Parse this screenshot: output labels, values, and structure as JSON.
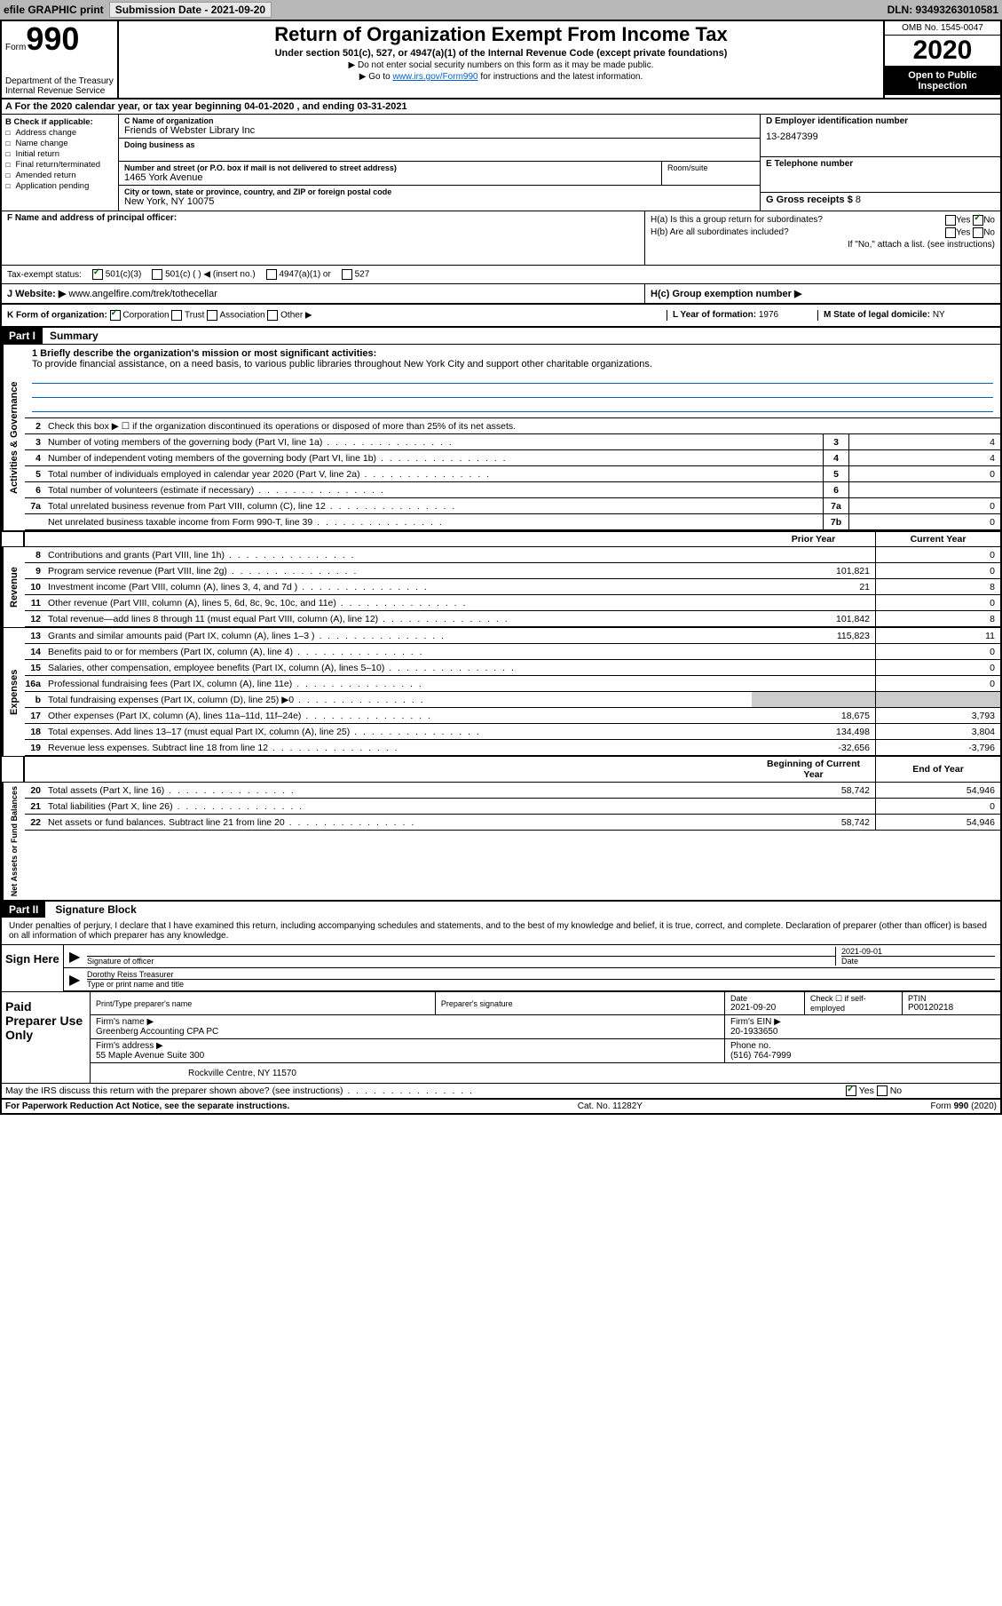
{
  "topbar": {
    "efile": "efile GRAPHIC print",
    "submission_label": "Submission Date - 2021-09-20",
    "dln": "DLN: 93493263010581"
  },
  "header": {
    "form_word": "Form",
    "form_num": "990",
    "dept": "Department of the Treasury\nInternal Revenue Service",
    "title": "Return of Organization Exempt From Income Tax",
    "subtitle": "Under section 501(c), 527, or 4947(a)(1) of the Internal Revenue Code (except private foundations)",
    "note1": "▶ Do not enter social security numbers on this form as it may be made public.",
    "note2_pre": "▶ Go to ",
    "note2_link": "www.irs.gov/Form990",
    "note2_post": " for instructions and the latest information.",
    "omb": "OMB No. 1545-0047",
    "year": "2020",
    "inspection": "Open to Public Inspection"
  },
  "row_a": "A For the 2020 calendar year, or tax year beginning 04-01-2020   , and ending 03-31-2021",
  "section_b": {
    "title": "B Check if applicable:",
    "items": [
      "Address change",
      "Name change",
      "Initial return",
      "Final return/terminated",
      "Amended return",
      "Application pending"
    ]
  },
  "section_c": {
    "name_label": "C Name of organization",
    "name": "Friends of Webster Library Inc",
    "dba_label": "Doing business as",
    "dba": "",
    "street_label": "Number and street (or P.O. box if mail is not delivered to street address)",
    "street": "1465 York Avenue",
    "room_label": "Room/suite",
    "city_label": "City or town, state or province, country, and ZIP or foreign postal code",
    "city": "New York, NY  10075"
  },
  "section_d": {
    "label": "D Employer identification number",
    "value": "13-2847399"
  },
  "section_e": {
    "label": "E Telephone number",
    "value": ""
  },
  "section_g": {
    "label": "G Gross receipts $",
    "value": "8"
  },
  "section_f": {
    "label": "F  Name and address of principal officer:",
    "value": ""
  },
  "section_h": {
    "ha": "H(a)  Is this a group return for subordinates?",
    "hb": "H(b)  Are all subordinates included?",
    "hb_note": "If \"No,\" attach a list. (see instructions)",
    "hc": "H(c)  Group exemption number ▶",
    "yes": "Yes",
    "no": "No"
  },
  "tax_status": {
    "label": "Tax-exempt status:",
    "opt1": "501(c)(3)",
    "opt2": "501(c) (   ) ◀ (insert no.)",
    "opt3": "4947(a)(1) or",
    "opt4": "527"
  },
  "section_j": {
    "label": "J   Website: ▶",
    "value": "www.angelfire.com/trek/tothecellar"
  },
  "section_k": {
    "label": "K Form of organization:",
    "corp": "Corporation",
    "trust": "Trust",
    "assoc": "Association",
    "other": "Other ▶"
  },
  "section_l": {
    "label": "L Year of formation:",
    "value": "1976"
  },
  "section_m": {
    "label": "M State of legal domicile:",
    "value": "NY"
  },
  "part1": {
    "badge": "Part I",
    "title": "Summary",
    "line1_label": "1  Briefly describe the organization's mission or most significant activities:",
    "mission": "To provide financial assistance, on a need basis, to various public libraries throughout New York City and support other charitable organizations.",
    "line2": "Check this box ▶ ☐  if the organization discontinued its operations or disposed of more than 25% of its net assets.",
    "rows_ag": [
      {
        "n": "3",
        "t": "Number of voting members of the governing body (Part VI, line 1a)",
        "box": "3",
        "v": "4"
      },
      {
        "n": "4",
        "t": "Number of independent voting members of the governing body (Part VI, line 1b)",
        "box": "4",
        "v": "4"
      },
      {
        "n": "5",
        "t": "Total number of individuals employed in calendar year 2020 (Part V, line 2a)",
        "box": "5",
        "v": "0"
      },
      {
        "n": "6",
        "t": "Total number of volunteers (estimate if necessary)",
        "box": "6",
        "v": ""
      },
      {
        "n": "7a",
        "t": "Total unrelated business revenue from Part VIII, column (C), line 12",
        "box": "7a",
        "v": "0"
      },
      {
        "n": "",
        "t": "Net unrelated business taxable income from Form 990-T, line 39",
        "box": "7b",
        "v": "0"
      }
    ],
    "col_prior": "Prior Year",
    "col_current": "Current Year",
    "col_begin": "Beginning of Current Year",
    "col_end": "End of Year",
    "side_ag": "Activities & Governance",
    "side_rev": "Revenue",
    "side_exp": "Expenses",
    "side_net": "Net Assets or Fund Balances",
    "rows_rev": [
      {
        "n": "8",
        "t": "Contributions and grants (Part VIII, line 1h)",
        "p": "",
        "c": "0"
      },
      {
        "n": "9",
        "t": "Program service revenue (Part VIII, line 2g)",
        "p": "101,821",
        "c": "0"
      },
      {
        "n": "10",
        "t": "Investment income (Part VIII, column (A), lines 3, 4, and 7d )",
        "p": "21",
        "c": "8"
      },
      {
        "n": "11",
        "t": "Other revenue (Part VIII, column (A), lines 5, 6d, 8c, 9c, 10c, and 11e)",
        "p": "",
        "c": "0"
      },
      {
        "n": "12",
        "t": "Total revenue—add lines 8 through 11 (must equal Part VIII, column (A), line 12)",
        "p": "101,842",
        "c": "8"
      }
    ],
    "rows_exp": [
      {
        "n": "13",
        "t": "Grants and similar amounts paid (Part IX, column (A), lines 1–3 )",
        "p": "115,823",
        "c": "11"
      },
      {
        "n": "14",
        "t": "Benefits paid to or for members (Part IX, column (A), line 4)",
        "p": "",
        "c": "0"
      },
      {
        "n": "15",
        "t": "Salaries, other compensation, employee benefits (Part IX, column (A), lines 5–10)",
        "p": "",
        "c": "0"
      },
      {
        "n": "16a",
        "t": "Professional fundraising fees (Part IX, column (A), line 11e)",
        "p": "",
        "c": "0"
      },
      {
        "n": "b",
        "t": "Total fundraising expenses (Part IX, column (D), line 25) ▶0",
        "p": "SHADE",
        "c": "SHADE"
      },
      {
        "n": "17",
        "t": "Other expenses (Part IX, column (A), lines 11a–11d, 11f–24e)",
        "p": "18,675",
        "c": "3,793"
      },
      {
        "n": "18",
        "t": "Total expenses. Add lines 13–17 (must equal Part IX, column (A), line 25)",
        "p": "134,498",
        "c": "3,804"
      },
      {
        "n": "19",
        "t": "Revenue less expenses. Subtract line 18 from line 12",
        "p": "-32,656",
        "c": "-3,796"
      }
    ],
    "rows_net": [
      {
        "n": "20",
        "t": "Total assets (Part X, line 16)",
        "p": "58,742",
        "c": "54,946"
      },
      {
        "n": "21",
        "t": "Total liabilities (Part X, line 26)",
        "p": "",
        "c": "0"
      },
      {
        "n": "22",
        "t": "Net assets or fund balances. Subtract line 21 from line 20",
        "p": "58,742",
        "c": "54,946"
      }
    ]
  },
  "part2": {
    "badge": "Part II",
    "title": "Signature Block",
    "penalties": "Under penalties of perjury, I declare that I have examined this return, including accompanying schedules and statements, and to the best of my knowledge and belief, it is true, correct, and complete. Declaration of preparer (other than officer) is based on all information of which preparer has any knowledge.",
    "sign_here": "Sign Here",
    "sig_officer": "Signature of officer",
    "sig_date": "Date",
    "sig_date_val": "2021-09-01",
    "officer_name": "Dorothy Reiss  Treasurer",
    "officer_label": "Type or print name and title",
    "paid_label": "Paid Preparer Use Only",
    "prep_name_label": "Print/Type preparer's name",
    "prep_sig_label": "Preparer's signature",
    "prep_date_label": "Date",
    "prep_date": "2021-09-20",
    "prep_check": "Check ☐ if self-employed",
    "ptin_label": "PTIN",
    "ptin": "P00120218",
    "firm_name_label": "Firm's name    ▶",
    "firm_name": "Greenberg Accounting CPA PC",
    "firm_ein_label": "Firm's EIN ▶",
    "firm_ein": "20-1933650",
    "firm_addr_label": "Firm's address ▶",
    "firm_addr1": "55 Maple Avenue Suite 300",
    "firm_addr2": "Rockville Centre, NY  11570",
    "phone_label": "Phone no.",
    "phone": "(516) 764-7999",
    "discuss": "May the IRS discuss this return with the preparer shown above? (see instructions)"
  },
  "footer": {
    "left": "For Paperwork Reduction Act Notice, see the separate instructions.",
    "mid": "Cat. No. 11282Y",
    "right": "Form 990 (2020)"
  }
}
